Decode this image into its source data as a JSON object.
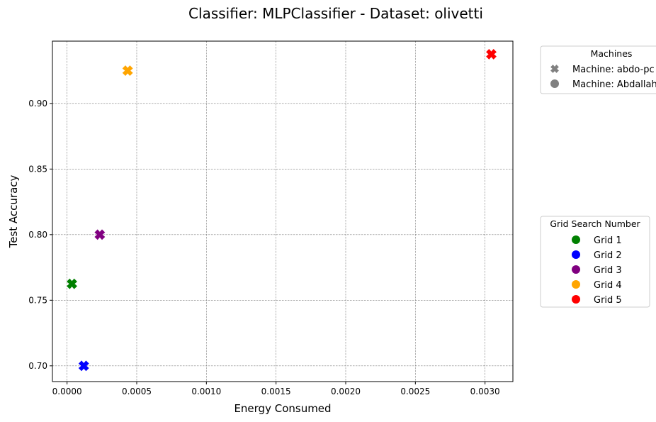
{
  "chart_data": {
    "type": "scatter",
    "title": "Classifier: MLPClassifier - Dataset: olivetti",
    "xlabel": "Energy Consumed",
    "ylabel": "Test Accuracy",
    "xlim": [
      -0.000105,
      0.0032
    ],
    "ylim": [
      0.688,
      0.9475
    ],
    "xticks": [
      "0.0000",
      "0.0005",
      "0.0010",
      "0.0015",
      "0.0020",
      "0.0025",
      "0.0030"
    ],
    "xtick_values": [
      0.0,
      0.0005,
      0.001,
      0.0015,
      0.002,
      0.0025,
      0.003
    ],
    "yticks": [
      "0.70",
      "0.75",
      "0.80",
      "0.85",
      "0.90"
    ],
    "ytick_values": [
      0.7,
      0.75,
      0.8,
      0.85,
      0.9
    ],
    "grid": true,
    "points": [
      {
        "grid": "Grid 1",
        "x": 3.5e-05,
        "y": 0.7625,
        "marker": "x",
        "color": "#008000"
      },
      {
        "grid": "Grid 2",
        "x": 0.00012,
        "y": 0.7,
        "marker": "x",
        "color": "#0000ff"
      },
      {
        "grid": "Grid 3",
        "x": 0.000235,
        "y": 0.8,
        "marker": "x",
        "color": "#800080"
      },
      {
        "grid": "Grid 4",
        "x": 0.000435,
        "y": 0.925,
        "marker": "x",
        "color": "#ffa500"
      },
      {
        "grid": "Grid 5",
        "x": 0.003045,
        "y": 0.9375,
        "marker": "x",
        "color": "#ff0000"
      }
    ],
    "legend_machines": {
      "title": "Machines",
      "placement": "outside-upper-right",
      "entries": [
        {
          "label": "Machine: abdo-pc",
          "marker": "x",
          "color": "#808080"
        },
        {
          "label": "Machine: Abdallah-Laptop",
          "marker": "o",
          "color": "#808080"
        }
      ]
    },
    "legend_grids": {
      "title": "Grid Search Number",
      "placement": "outside-center-right",
      "entries": [
        {
          "label": "Grid 1",
          "color": "#008000"
        },
        {
          "label": "Grid 2",
          "color": "#0000ff"
        },
        {
          "label": "Grid 3",
          "color": "#800080"
        },
        {
          "label": "Grid 4",
          "color": "#ffa500"
        },
        {
          "label": "Grid 5",
          "color": "#ff0000"
        }
      ]
    }
  }
}
